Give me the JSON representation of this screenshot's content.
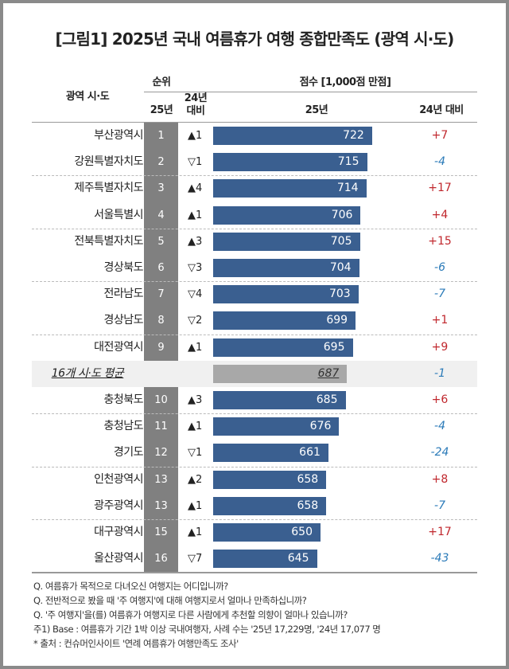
{
  "title": "[그림1] 2025년 국내 여름휴가 여행 종합만족도 (광역 시·도)",
  "headers": {
    "region": "광역 시·도",
    "rank": "순위",
    "score": "점수 [1,000점 만점]",
    "rank_25": "25년",
    "rank_24_line1": "24년",
    "rank_24_line2": "대비",
    "score_25": "25년",
    "score_24": "24년 대비"
  },
  "colors": {
    "bar": "#3a5f90",
    "average_bar": "#a8a8a8",
    "rank_column": "#808080",
    "increase": "#c0272d",
    "decrease": "#2a7ab8"
  },
  "chart_data": {
    "type": "bar",
    "title": "[그림1] 2025년 국내 여름휴가 여행 종합만족도 (광역 시·도)",
    "ylabel": "점수 [1,000점 만점]",
    "rows": [
      {
        "region": "부산광역시",
        "rank": "1",
        "rank_change": "▲1",
        "score": 722,
        "delta": "+7"
      },
      {
        "region": "강원특별자치도",
        "rank": "2",
        "rank_change": "▽1",
        "score": 715,
        "delta": "-4"
      },
      {
        "region": "제주특별자치도",
        "rank": "3",
        "rank_change": "▲4",
        "score": 714,
        "delta": "+17"
      },
      {
        "region": "서울특별시",
        "rank": "4",
        "rank_change": "▲1",
        "score": 706,
        "delta": "+4"
      },
      {
        "region": "전북특별자치도",
        "rank": "5",
        "rank_change": "▲3",
        "score": 705,
        "delta": "+15"
      },
      {
        "region": "경상북도",
        "rank": "6",
        "rank_change": "▽3",
        "score": 704,
        "delta": "-6"
      },
      {
        "region": "전라남도",
        "rank": "7",
        "rank_change": "▽4",
        "score": 703,
        "delta": "-7"
      },
      {
        "region": "경상남도",
        "rank": "8",
        "rank_change": "▽2",
        "score": 699,
        "delta": "+1"
      },
      {
        "region": "대전광역시",
        "rank": "9",
        "rank_change": "▲1",
        "score": 695,
        "delta": "+9"
      },
      {
        "region": "16개 시·도 평균",
        "rank": "",
        "rank_change": "",
        "score": 687,
        "delta": "-1",
        "average": true
      },
      {
        "region": "충청북도",
        "rank": "10",
        "rank_change": "▲3",
        "score": 685,
        "delta": "+6"
      },
      {
        "region": "충청남도",
        "rank": "11",
        "rank_change": "▲1",
        "score": 676,
        "delta": "-4"
      },
      {
        "region": "경기도",
        "rank": "12",
        "rank_change": "▽1",
        "score": 661,
        "delta": "-24"
      },
      {
        "region": "인천광역시",
        "rank": "13",
        "rank_change": "▲2",
        "score": 658,
        "delta": "+8"
      },
      {
        "region": "광주광역시",
        "rank": "13",
        "rank_change": "▲1",
        "score": 658,
        "delta": "-7"
      },
      {
        "region": "대구광역시",
        "rank": "15",
        "rank_change": "▲1",
        "score": 650,
        "delta": "+17"
      },
      {
        "region": "울산광역시",
        "rank": "16",
        "rank_change": "▽7",
        "score": 645,
        "delta": "-43"
      }
    ]
  },
  "notes": [
    "Q. 여름휴가 목적으로 다녀오신 여행지는 어디입니까?",
    "Q. 전반적으로 봤을 때 '주 여행지'에 대해 여행지로서 얼마나 만족하십니까?",
    "Q. '주 여행지'을(를) 여름휴가 여행지로 다른 사람에게 추천할 의향이 얼마나 있습니까?",
    "주1) Base : 여름휴가 기간 1박 이상 국내여행자, 사례 수는 '25년 17,229명, '24년 17,077 명",
    "* 출처 : 컨슈머인사이트 '연례 여름휴가 여행만족도 조사'"
  ]
}
